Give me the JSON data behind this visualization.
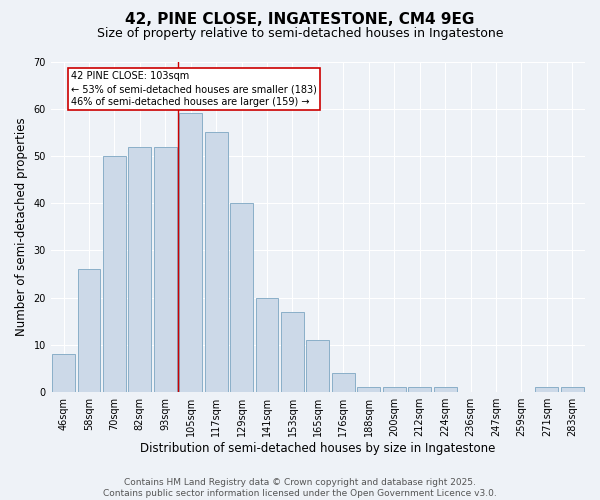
{
  "title": "42, PINE CLOSE, INGATESTONE, CM4 9EG",
  "subtitle": "Size of property relative to semi-detached houses in Ingatestone",
  "xlabel": "Distribution of semi-detached houses by size in Ingatestone",
  "ylabel": "Number of semi-detached properties",
  "bar_labels": [
    "46sqm",
    "58sqm",
    "70sqm",
    "82sqm",
    "93sqm",
    "105sqm",
    "117sqm",
    "129sqm",
    "141sqm",
    "153sqm",
    "165sqm",
    "176sqm",
    "188sqm",
    "200sqm",
    "212sqm",
    "224sqm",
    "236sqm",
    "247sqm",
    "259sqm",
    "271sqm",
    "283sqm"
  ],
  "bar_values": [
    8,
    26,
    50,
    52,
    52,
    59,
    55,
    40,
    20,
    17,
    11,
    4,
    1,
    1,
    1,
    1,
    0,
    0,
    0,
    1,
    1
  ],
  "ylim": [
    0,
    70
  ],
  "yticks": [
    0,
    10,
    20,
    30,
    40,
    50,
    60,
    70
  ],
  "bar_color": "#ccd9e8",
  "bar_edgecolor": "#8aafc8",
  "vline_index": 4.5,
  "vline_color": "#cc0000",
  "annotation_title": "42 PINE CLOSE: 103sqm",
  "annotation_line1": "← 53% of semi-detached houses are smaller (183)",
  "annotation_line2": "46% of semi-detached houses are larger (159) →",
  "annotation_box_color": "#cc0000",
  "footer_line1": "Contains HM Land Registry data © Crown copyright and database right 2025.",
  "footer_line2": "Contains public sector information licensed under the Open Government Licence v3.0.",
  "bg_color": "#eef2f7",
  "plot_bg_color": "#eef2f7",
  "title_fontsize": 11,
  "subtitle_fontsize": 9,
  "axis_label_fontsize": 8.5,
  "tick_fontsize": 7,
  "annotation_fontsize": 7,
  "footer_fontsize": 6.5
}
